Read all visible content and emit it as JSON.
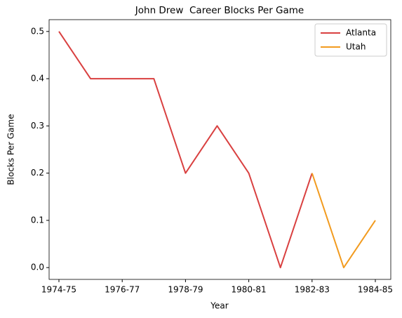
{
  "chart_data": {
    "type": "line",
    "title": "John Drew  Career Blocks Per Game",
    "x_label": "Year",
    "y_label": "Blocks Per Game",
    "categories": [
      "1974-75",
      null,
      "1976-77",
      null,
      "1978-79",
      null,
      "1980-81",
      null,
      "1982-83",
      null,
      "1984-85"
    ],
    "series": [
      {
        "name": "Atlanta",
        "color": "#d94040",
        "values": [
          0.5,
          0.4,
          0.4,
          0.4,
          0.2,
          0.3,
          0.2,
          0.0,
          0.2,
          null,
          null
        ]
      },
      {
        "name": "Utah",
        "color": "#f29b1f",
        "values": [
          null,
          null,
          null,
          null,
          null,
          null,
          null,
          null,
          0.2,
          0.0,
          0.1
        ]
      }
    ],
    "ylim": [
      -0.025,
      0.525
    ],
    "yticks": [
      {
        "value": 0,
        "label": "0.0"
      },
      0.1,
      0.2,
      0.3,
      0.4,
      0.5
    ],
    "legend": "upper right",
    "grid": false
  }
}
